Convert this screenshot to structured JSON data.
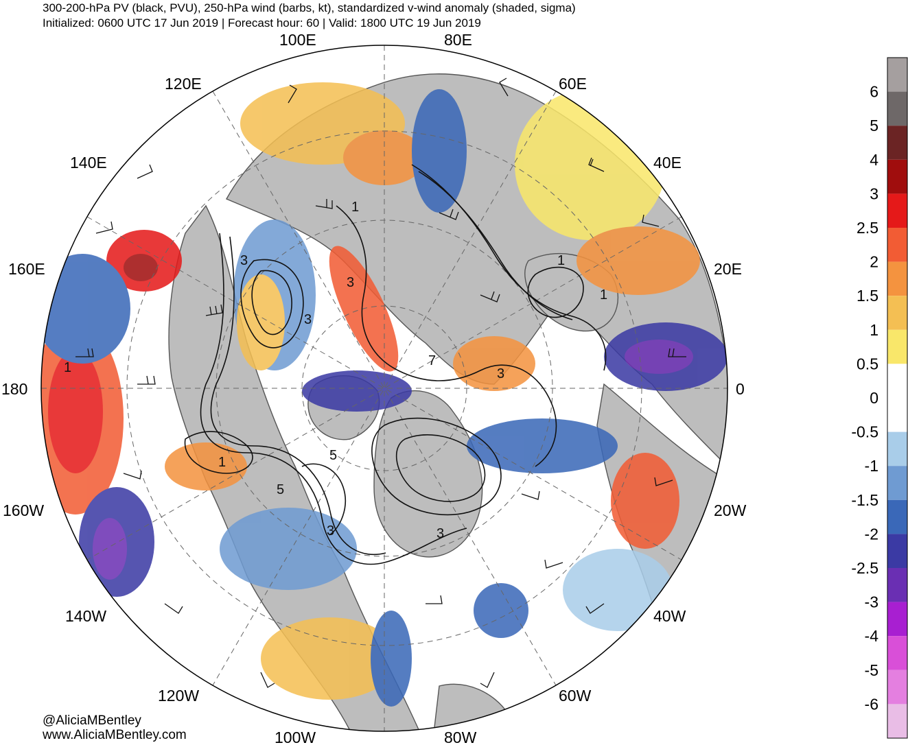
{
  "header": {
    "title": "300-200-hPa PV (black, PVU), 250-hPa wind (barbs, kt), standardized v-wind anomaly (shaded, sigma)",
    "subtitle": "Initialized: 0600 UTC 17 Jun 2019 | Forecast hour: 60 | Valid: 1800 UTC 19 Jun 2019"
  },
  "map": {
    "projection": "north-polar-stereographic",
    "longitude_labels": [
      "100E",
      "80E",
      "120E",
      "60E",
      "140E",
      "40E",
      "160E",
      "20E",
      "180",
      "0",
      "160W",
      "20W",
      "140W",
      "40W",
      "120W",
      "60W",
      "100W",
      "80W"
    ],
    "pv_contour_labels": [
      "1",
      "3",
      "3",
      "3",
      "1",
      "7",
      "3",
      "5",
      "5",
      "3",
      "3",
      "1",
      "1",
      "1"
    ],
    "colors": {
      "land": "#bdbdbd",
      "ocean": "#ffffff",
      "coast": "#555555",
      "contour": "#111111"
    }
  },
  "colorbar": {
    "labels": [
      "6",
      "5",
      "4",
      "3",
      "2.5",
      "2",
      "1.5",
      "1",
      "0.5",
      "0",
      "-0.5",
      "-1",
      "-1.5",
      "-2",
      "-2.5",
      "-3",
      "-4",
      "-5",
      "-6"
    ],
    "colors": [
      "#a59f9f",
      "#6e6868",
      "#6b2424",
      "#a00d0d",
      "#e51919",
      "#f25c34",
      "#f4933f",
      "#f4bf53",
      "#f9e76a",
      "#ffffff",
      "#ffffff",
      "#a9cde9",
      "#6f9bd2",
      "#3a68b8",
      "#3b3aa4",
      "#6a2fb3",
      "#a81fd1",
      "#d94fd8",
      "#e47fe0",
      "#e9bde6"
    ]
  },
  "credits": {
    "handle": "@AliciaMBentley",
    "website": "www.AliciaMBentley.com"
  }
}
